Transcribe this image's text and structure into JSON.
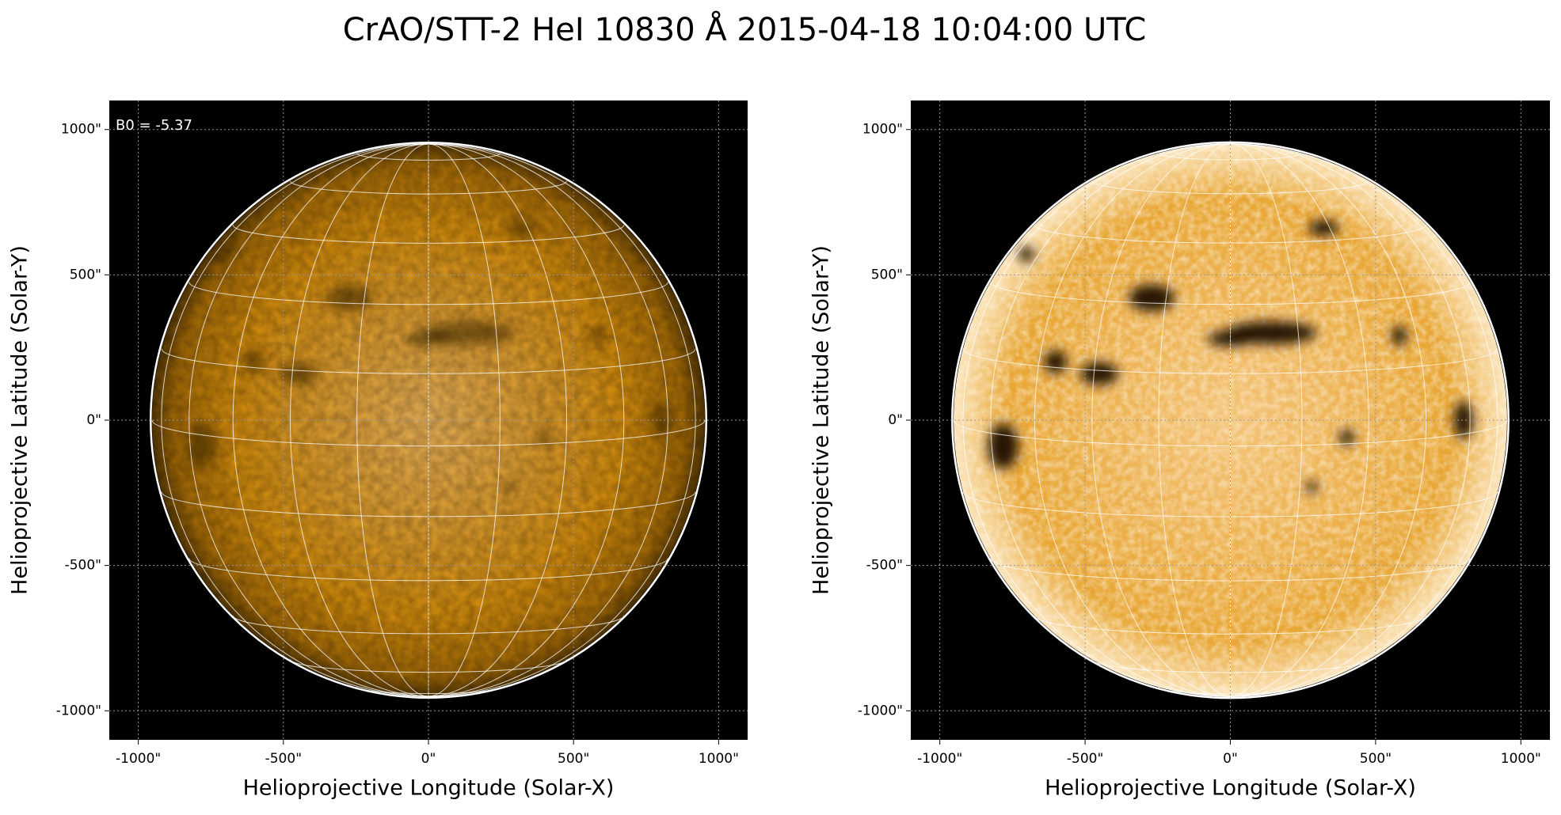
{
  "title": "CrAO/STT-2 HeI 10830 Å 2015-04-18 10:04:00 UTC",
  "chart_data": [
    {
      "type": "image",
      "annotation": "B0 = -5.37",
      "xlabel": "Helioprojective Longitude (Solar-X)",
      "ylabel": "Helioprojective Latitude (Solar-Y)",
      "xlim": [
        -1100,
        1100
      ],
      "ylim": [
        -1100,
        1100
      ],
      "xticks": [
        {
          "value": -1000,
          "label": "-1000\""
        },
        {
          "value": -500,
          "label": "-500\""
        },
        {
          "value": 0,
          "label": "0\""
        },
        {
          "value": 500,
          "label": "500\""
        },
        {
          "value": 1000,
          "label": "1000\""
        }
      ],
      "yticks": [
        {
          "value": -1000,
          "label": "-1000\""
        },
        {
          "value": -500,
          "label": "-500\""
        },
        {
          "value": 0,
          "label": "0\""
        },
        {
          "value": 500,
          "label": "500\""
        },
        {
          "value": 1000,
          "label": "1000\""
        }
      ],
      "grid": true
    },
    {
      "type": "image",
      "xlabel": "Helioprojective Longitude (Solar-X)",
      "ylabel": "Helioprojective Latitude (Solar-Y)",
      "xlim": [
        -1100,
        1100
      ],
      "ylim": [
        -1100,
        1100
      ],
      "xticks": [
        {
          "value": -1000,
          "label": "-1000\""
        },
        {
          "value": -500,
          "label": "-500\""
        },
        {
          "value": 0,
          "label": "0\""
        },
        {
          "value": 500,
          "label": "500\""
        },
        {
          "value": 1000,
          "label": "1000\""
        }
      ],
      "yticks": [
        {
          "value": -1000,
          "label": "-1000\""
        },
        {
          "value": -500,
          "label": "-500\""
        },
        {
          "value": 0,
          "label": "0\""
        },
        {
          "value": 500,
          "label": "500\""
        },
        {
          "value": 1000,
          "label": "1000\""
        }
      ],
      "grid": true
    }
  ]
}
